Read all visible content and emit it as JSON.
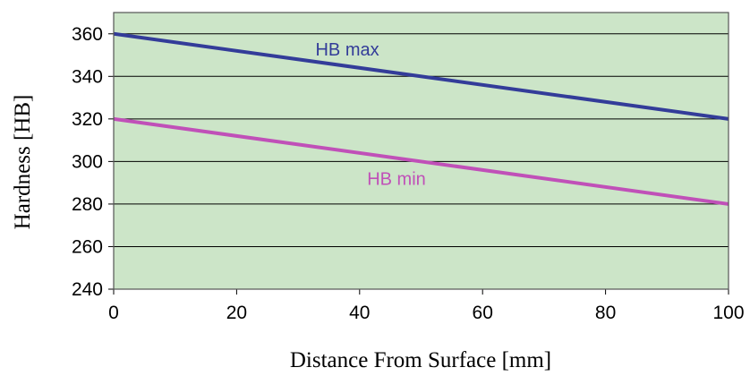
{
  "chart_data": {
    "type": "line",
    "title": "",
    "xlabel": "Distance From Surface [mm]",
    "ylabel": "Hardness [HB]",
    "xlim": [
      0,
      100
    ],
    "ylim": [
      240,
      370
    ],
    "x_ticks": [
      0,
      20,
      40,
      60,
      80,
      100
    ],
    "y_ticks": [
      240,
      260,
      280,
      300,
      320,
      340,
      360
    ],
    "grid": "horizontal",
    "plot_background": "#cce5c8",
    "series": [
      {
        "name": "HB max",
        "color": "#333c99",
        "x": [
          0,
          100
        ],
        "y": [
          360,
          320
        ]
      },
      {
        "name": "HB min",
        "color": "#c050b8",
        "x": [
          0,
          100
        ],
        "y": [
          320,
          280
        ]
      }
    ]
  }
}
